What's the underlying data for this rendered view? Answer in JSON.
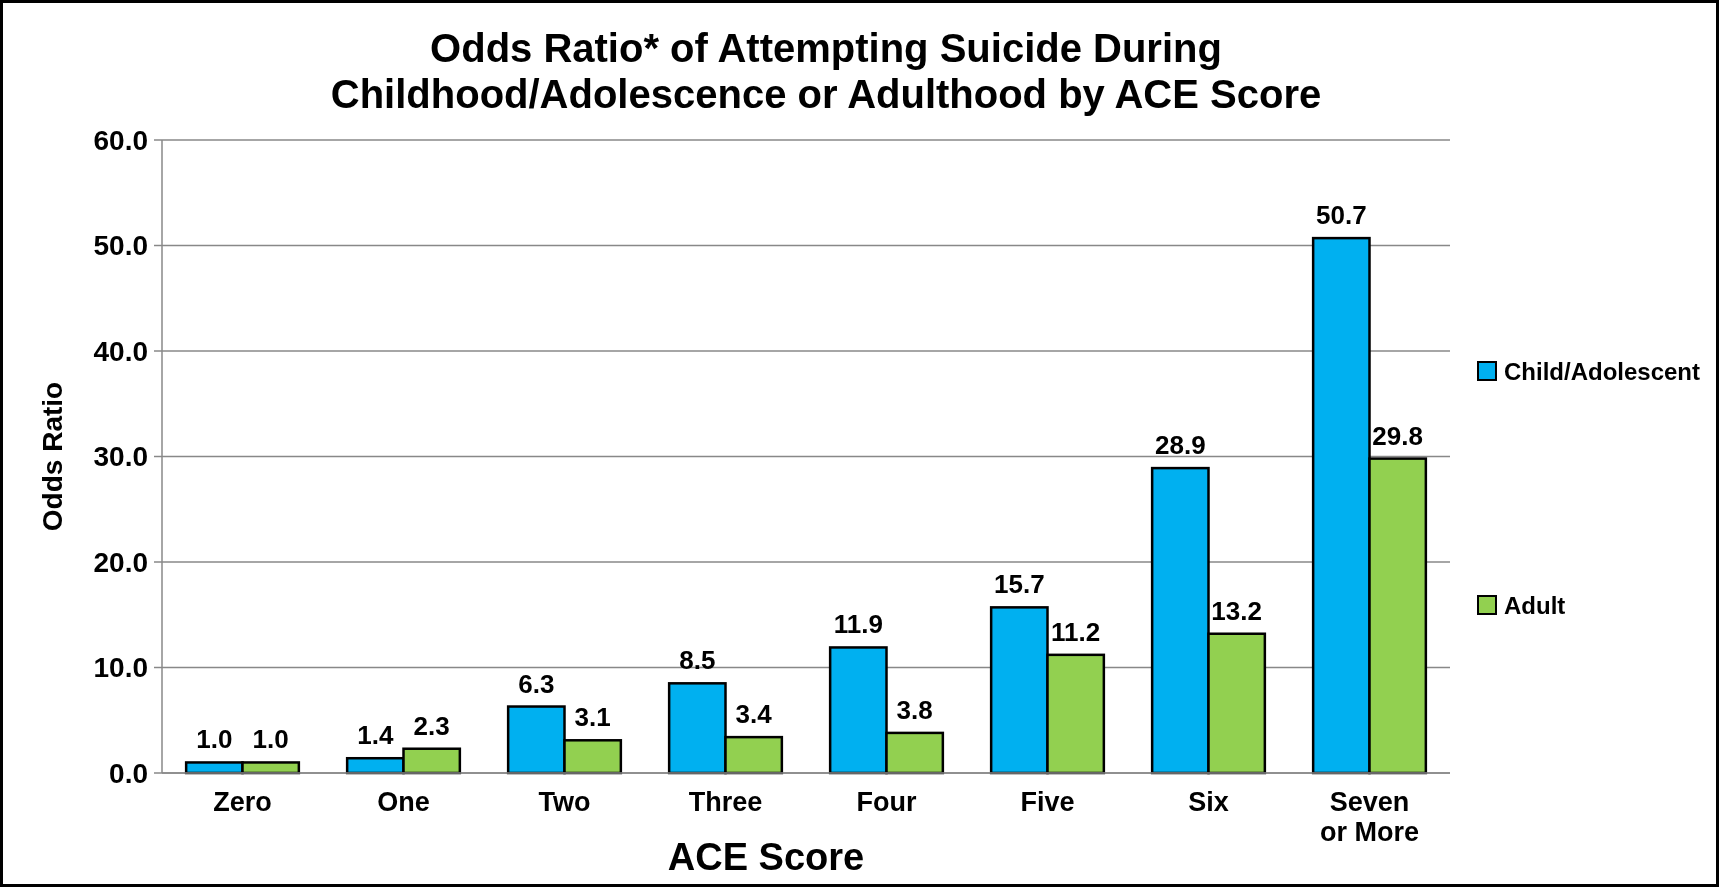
{
  "chart_data": {
    "type": "bar",
    "title": "Odds Ratio* of Attempting Suicide During Childhood/Adolescence or Adulthood by ACE Score",
    "xlabel": "ACE Score",
    "ylabel": "Odds Ratio",
    "categories": [
      "Zero",
      "One",
      "Two",
      "Three",
      "Four",
      "Five",
      "Six",
      "Seven or More"
    ],
    "series": [
      {
        "name": "Child/Adolescent",
        "color": "#00b0f0",
        "values": [
          1.0,
          1.4,
          6.3,
          8.5,
          11.9,
          15.7,
          28.9,
          50.7
        ],
        "value_labels": [
          "1.0",
          "1.4",
          "6.3",
          "8.5",
          "11.9",
          "15.7",
          "28.9",
          "50.7"
        ]
      },
      {
        "name": "Adult",
        "color": "#92d050",
        "values": [
          1.0,
          2.3,
          3.1,
          3.4,
          3.8,
          11.2,
          13.2,
          29.8
        ],
        "value_labels": [
          "1.0",
          "2.3",
          "3.1",
          "3.4",
          "3.8",
          "11.2",
          "13.2",
          "29.8"
        ]
      }
    ],
    "ylim": [
      0,
      60
    ],
    "yticks": [
      {
        "value": 0,
        "label": "0.0"
      },
      {
        "value": 10,
        "label": "10.0"
      },
      {
        "value": 20,
        "label": "20.0"
      },
      {
        "value": 30,
        "label": "30.0"
      },
      {
        "value": 40,
        "label": "40.0"
      },
      {
        "value": 50,
        "label": "50.0"
      },
      {
        "value": 60,
        "label": "60.0"
      }
    ],
    "grid": "y",
    "legend": "right"
  }
}
